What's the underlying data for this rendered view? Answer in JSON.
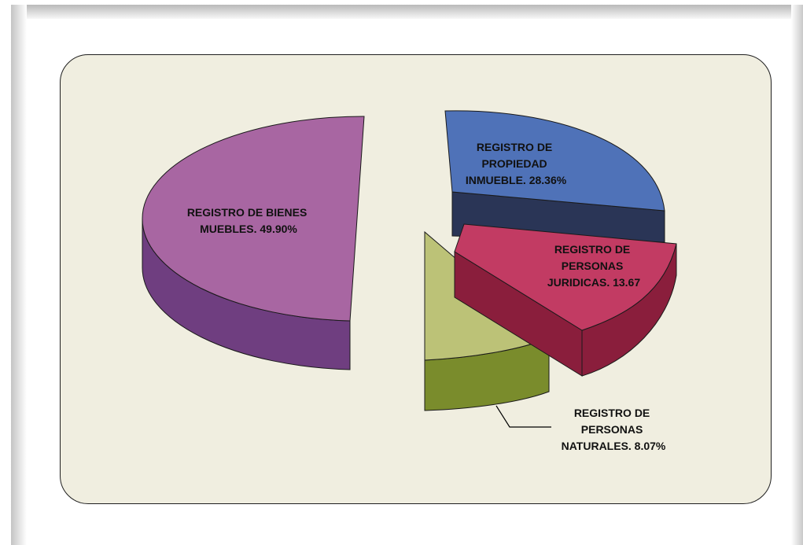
{
  "chart_data": {
    "type": "pie",
    "title": "",
    "legend": "none",
    "slices": [
      {
        "label_lines": [
          "REGISTRO DE BIENES",
          "MUEBLES. 49.90%"
        ],
        "value": 49.9,
        "color": "#a866a2",
        "side_color": "#6f3e80"
      },
      {
        "label_lines": [
          "REGISTRO DE",
          "PROPIEDAD",
          "INMUEBLE. 28.36%"
        ],
        "value": 28.36,
        "color": "#4f72b8",
        "side_color": "#2a3556"
      },
      {
        "label_lines": [
          "REGISTRO DE",
          "PERSONAS",
          "JURIDICAS. 13.67"
        ],
        "value": 13.67,
        "color": "#c23b63",
        "side_color": "#8a1e3c"
      },
      {
        "label_lines": [
          "REGISTRO DE",
          "PERSONAS",
          "NATURALES. 8.07%"
        ],
        "value": 8.07,
        "color": "#bcc277",
        "side_color": "#7a8c2c"
      }
    ],
    "colors": {
      "background": "#f0eee0",
      "border": "#1f1f1f"
    }
  }
}
